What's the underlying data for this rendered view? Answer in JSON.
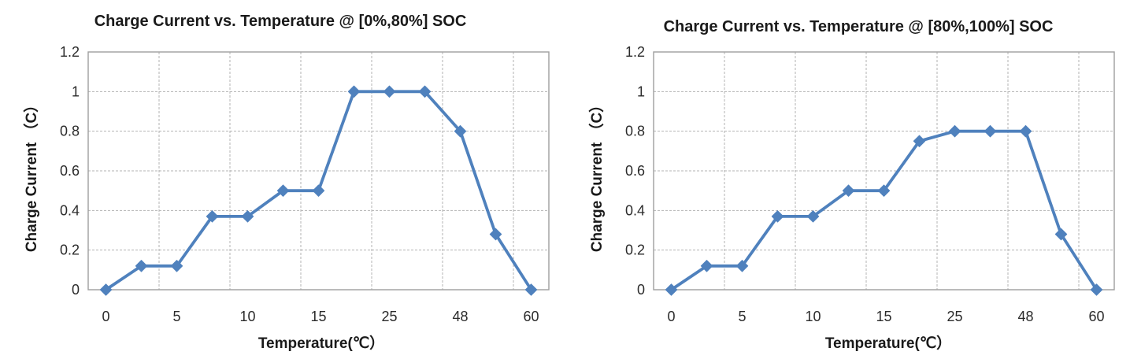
{
  "colors": {
    "series_line": "#4f81bd",
    "gridline": "#b3b3b3",
    "plot_border": "#9e9e9e",
    "title_text": "#1a1a1a",
    "tick_text": "#2b2b2b",
    "background": "#ffffff"
  },
  "chart_data": [
    {
      "type": "line",
      "title": "Charge Current vs. Temperature @ [0%,80%] SOC",
      "xlabel": "Temperature(℃）",
      "ylabel": "Charge Current （C）",
      "categories": [
        "0",
        "",
        "5",
        "",
        "10",
        "",
        "15",
        "",
        "25",
        "",
        "48",
        "",
        "60"
      ],
      "x_tick_labels": [
        "0",
        "5",
        "10",
        "15",
        "25",
        "48",
        "60"
      ],
      "y_ticks": [
        0,
        0.2,
        0.4,
        0.6,
        0.8,
        1,
        1.2
      ],
      "y_tick_labels": [
        "0",
        "0.2",
        "0.4",
        "0.6",
        "0.8",
        "1",
        "1.2"
      ],
      "ylim": [
        0,
        1.2
      ],
      "grid": true,
      "legend": false,
      "marker": "diamond",
      "values": [
        0,
        0.12,
        0.12,
        0.37,
        0.37,
        0.5,
        0.5,
        1,
        1,
        1,
        0.8,
        0.28,
        0
      ]
    },
    {
      "type": "line",
      "title": "Charge Current vs. Temperature @ [80%,100%] SOC",
      "xlabel": "Temperature(℃）",
      "ylabel": "Charge Current （C）",
      "categories": [
        "0",
        "",
        "5",
        "",
        "10",
        "",
        "15",
        "",
        "25",
        "",
        "48",
        "",
        "60"
      ],
      "x_tick_labels": [
        "0",
        "5",
        "10",
        "15",
        "25",
        "48",
        "60"
      ],
      "y_ticks": [
        0,
        0.2,
        0.4,
        0.6,
        0.8,
        1,
        1.2
      ],
      "y_tick_labels": [
        "0",
        "0.2",
        "0.4",
        "0.6",
        "0.8",
        "1",
        "1.2"
      ],
      "ylim": [
        0,
        1.2
      ],
      "grid": true,
      "legend": false,
      "marker": "diamond",
      "values": [
        0,
        0.12,
        0.12,
        0.37,
        0.37,
        0.5,
        0.5,
        0.75,
        0.8,
        0.8,
        0.8,
        0.28,
        0
      ]
    }
  ]
}
